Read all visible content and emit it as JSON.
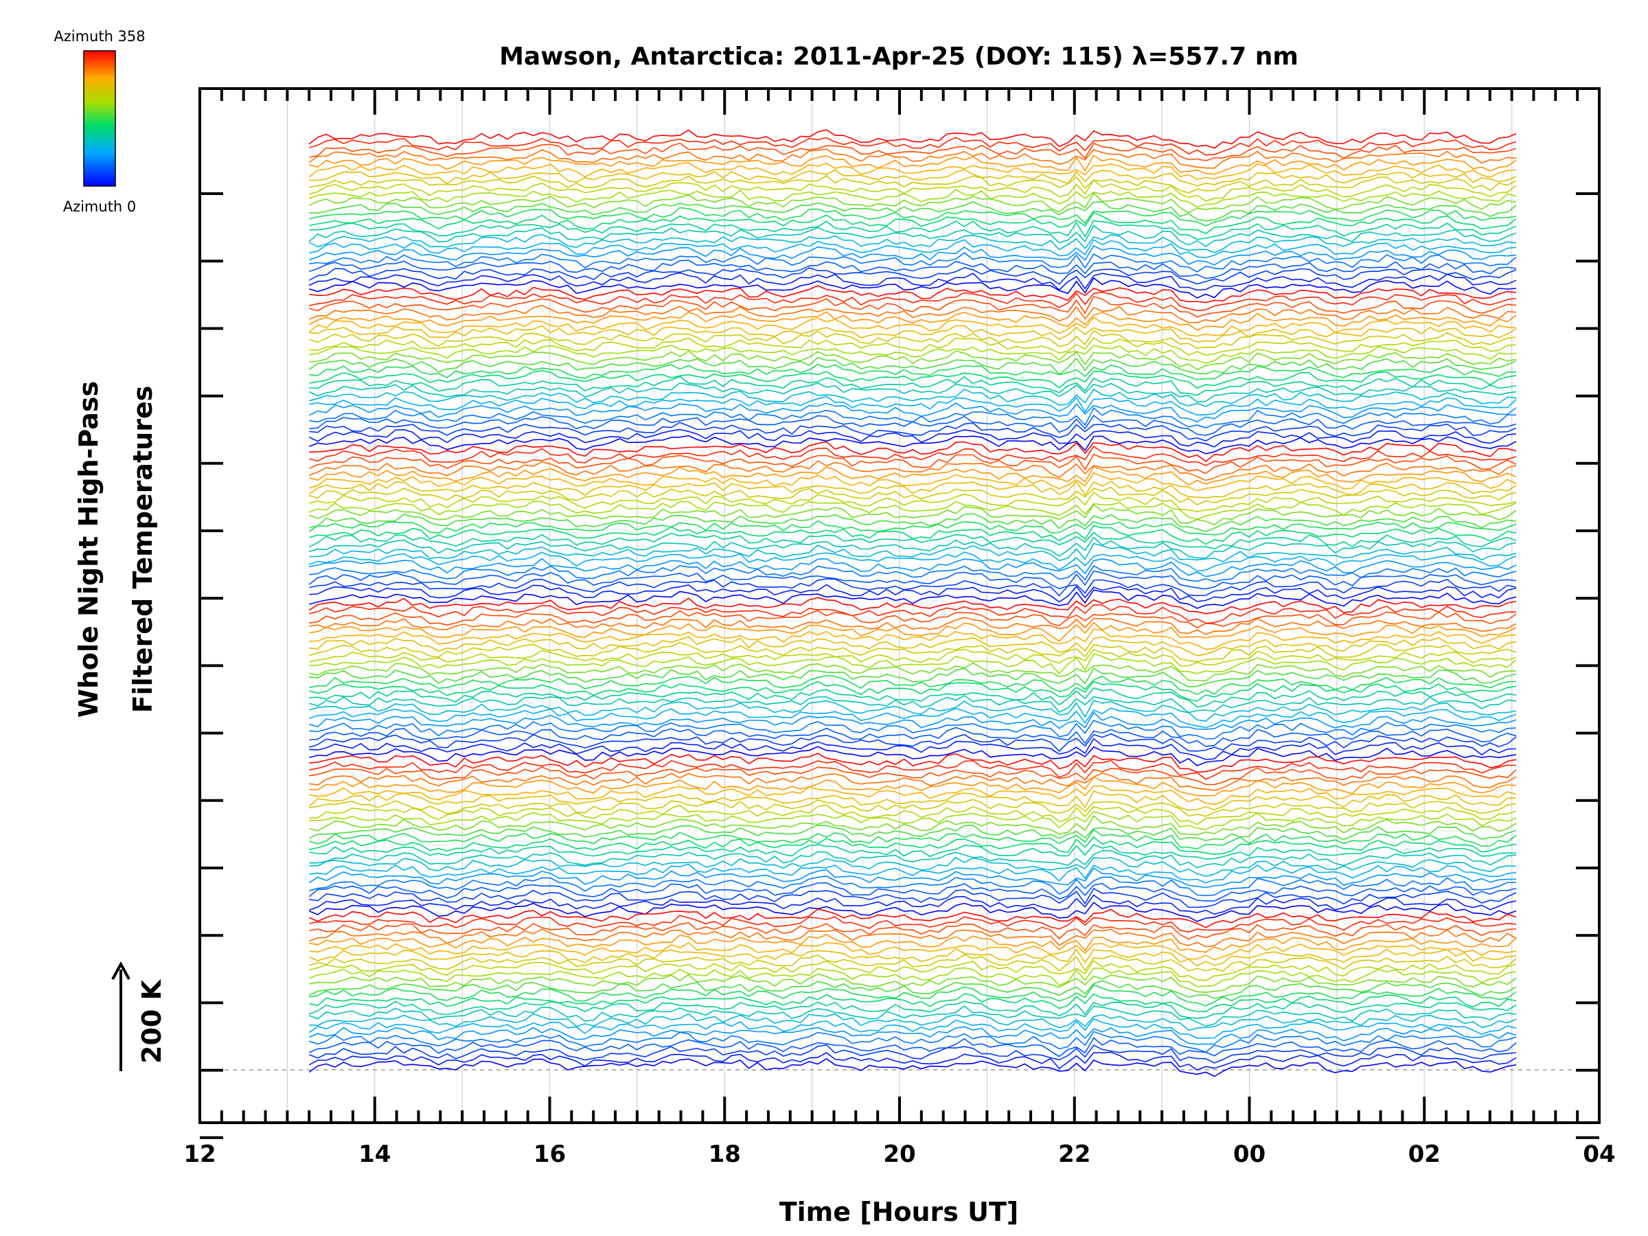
{
  "chart_data": {
    "type": "line",
    "title": "Mawson, Antarctica: 2011-Apr-25 (DOY: 115) λ=557.7 nm",
    "xlabel": "Time [Hours UT]",
    "ylabel": [
      "Whole Night High-Pass",
      "Filtered Temperatures"
    ],
    "scale_label": "200 K",
    "x_ticks": [
      "12",
      "14",
      "16",
      "18",
      "20",
      "22",
      "00",
      "02",
      "04"
    ],
    "xlim": [
      12,
      28
    ],
    "data_range": [
      13.25,
      27.05
    ],
    "colorbar": {
      "top_label": "Azimuth 358",
      "bottom_label": "Azimuth 0",
      "min": 0,
      "max": 358
    },
    "legend": "top-left",
    "grid": true,
    "num_series": 144,
    "series_description": "144 stacked high-pass filtered temperature traces, one per look direction, colored by azimuth (0 = blue, 358 = red); groups of ~24 azimuths repeat for successive zenith rings"
  }
}
